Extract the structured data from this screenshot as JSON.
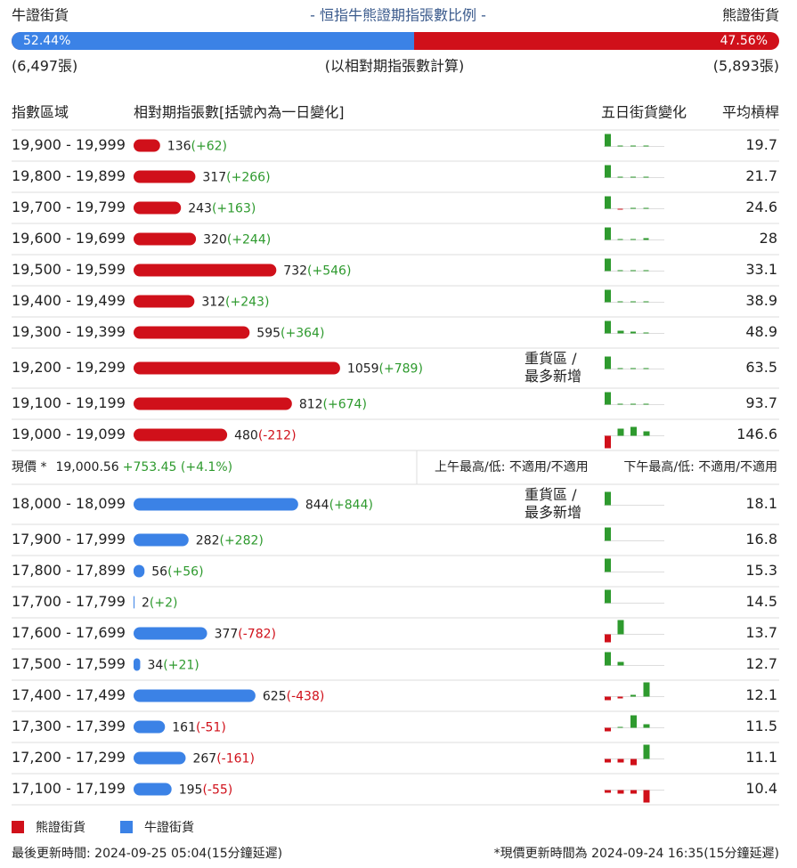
{
  "header": {
    "left_label": "牛證街貨",
    "title": "- 恒指牛熊證期指張數比例 -",
    "right_label": "熊證街貨"
  },
  "ratio": {
    "bull": {
      "value": 52.44,
      "label": "52.44%"
    },
    "bear": {
      "value": 47.56,
      "label": "47.56%"
    },
    "bull_color": "#3b82e6",
    "bear_color": "#d0101a"
  },
  "totals": {
    "bull": "(6,497張)",
    "note": "(以相對期指張數計算)",
    "bear": "(5,893張)"
  },
  "columns": [
    "指數區域",
    "相對期指張數[括號內為一日變化]",
    "五日街貨變化",
    "平均槓桿"
  ],
  "bear_rows": [
    {
      "range": "19,900 - 19,999",
      "count": 136,
      "change": {
        "value": 62,
        "label": "(+62)"
      },
      "five_day": [
        14,
        1,
        1,
        1,
        0
      ],
      "leverage": 19.7
    },
    {
      "range": "19,800 - 19,899",
      "count": 317,
      "change": {
        "value": 266,
        "label": "(+266)"
      },
      "five_day": [
        14,
        1,
        1,
        1,
        0
      ],
      "leverage": 21.7
    },
    {
      "range": "19,700 - 19,799",
      "count": 243,
      "change": {
        "value": 163,
        "label": "(+163)"
      },
      "five_day": [
        14,
        -1,
        1,
        1,
        0
      ],
      "leverage": 24.6
    },
    {
      "range": "19,600 - 19,699",
      "count": 320,
      "change": {
        "value": 244,
        "label": "(+244)"
      },
      "five_day": [
        14,
        1,
        1,
        2,
        0
      ],
      "leverage": 28.0
    },
    {
      "range": "19,500 - 19,599",
      "count": 732,
      "change": {
        "value": 546,
        "label": "(+546)"
      },
      "five_day": [
        14,
        1,
        1,
        1,
        0
      ],
      "leverage": 33.1
    },
    {
      "range": "19,400 - 19,499",
      "count": 312,
      "change": {
        "value": 243,
        "label": "(+243)"
      },
      "five_day": [
        14,
        1,
        1,
        1,
        0
      ],
      "leverage": 38.9
    },
    {
      "range": "19,300 - 19,399",
      "count": 595,
      "change": {
        "value": 364,
        "label": "(+364)"
      },
      "five_day": [
        14,
        3,
        2,
        1,
        0
      ],
      "leverage": 48.9
    },
    {
      "range": "19,200 - 19,299",
      "count": 1059,
      "change": {
        "value": 789,
        "label": "(+789)"
      },
      "note": [
        "重貨區 /",
        "最多新增"
      ],
      "five_day": [
        14,
        1,
        1,
        1,
        0
      ],
      "leverage": 63.5
    },
    {
      "range": "19,100 - 19,199",
      "count": 812,
      "change": {
        "value": 674,
        "label": "(+674)"
      },
      "five_day": [
        14,
        1,
        1,
        1,
        0
      ],
      "leverage": 93.7
    },
    {
      "range": "19,000 - 19,099",
      "count": 480,
      "change": {
        "value": -212,
        "label": "(-212)"
      },
      "five_day": [
        -14,
        8,
        10,
        5,
        0
      ],
      "leverage": 146.6
    }
  ],
  "price_row": {
    "label": "現價 *",
    "price": {
      "value": 19000.56,
      "label": "19,000.56"
    },
    "change": "+753.45 (+4.1%)",
    "am": "上午最高/低: 不適用/不適用",
    "pm": "下午最高/低: 不適用/不適用"
  },
  "bull_rows": [
    {
      "range": "18,000 - 18,099",
      "count": 844,
      "change": {
        "value": 844,
        "label": "(+844)"
      },
      "note": [
        "重貨區 /",
        "最多新增"
      ],
      "five_day": [
        15,
        0,
        0,
        0,
        0
      ],
      "leverage": 18.1
    },
    {
      "range": "17,900 - 17,999",
      "count": 282,
      "change": {
        "value": 282,
        "label": "(+282)"
      },
      "five_day": [
        15,
        0,
        0,
        0,
        0
      ],
      "leverage": 16.8
    },
    {
      "range": "17,800 - 17,899",
      "count": 56,
      "change": {
        "value": 56,
        "label": "(+56)"
      },
      "five_day": [
        15,
        0,
        0,
        0,
        0
      ],
      "leverage": 15.3
    },
    {
      "range": "17,700 - 17,799",
      "count": 2,
      "change": {
        "value": 2,
        "label": "(+2)"
      },
      "five_day": [
        15,
        0,
        0,
        0,
        0
      ],
      "leverage": 14.5
    },
    {
      "range": "17,600 - 17,699",
      "count": 377,
      "change": {
        "value": -782,
        "label": "(-782)"
      },
      "five_day": [
        -9,
        16,
        0,
        0,
        0
      ],
      "leverage": 13.7
    },
    {
      "range": "17,500 - 17,599",
      "count": 34,
      "change": {
        "value": 21,
        "label": "(+21)"
      },
      "five_day": [
        15,
        4,
        0,
        0,
        0
      ],
      "leverage": 12.7
    },
    {
      "range": "17,400 - 17,499",
      "count": 625,
      "change": {
        "value": -438,
        "label": "(-438)"
      },
      "five_day": [
        -4,
        -2,
        2,
        16,
        0
      ],
      "leverage": 12.1
    },
    {
      "range": "17,300 - 17,399",
      "count": 161,
      "change": {
        "value": -51,
        "label": "(-51)"
      },
      "five_day": [
        -4,
        1,
        14,
        4,
        0
      ],
      "leverage": 11.5
    },
    {
      "range": "17,200 - 17,299",
      "count": 267,
      "change": {
        "value": -161,
        "label": "(-161)"
      },
      "five_day": [
        -4,
        -4,
        -7,
        16,
        0
      ],
      "leverage": 11.1
    },
    {
      "range": "17,100 - 17,199",
      "count": 195,
      "change": {
        "value": -55,
        "label": "(-55)"
      },
      "five_day": [
        -3,
        -4,
        -4,
        -14,
        0
      ],
      "leverage": 10.4
    }
  ],
  "legend": {
    "bear": "熊證街貨",
    "bull": "牛證街貨"
  },
  "footer": {
    "updated": "最後更新時間: 2024-09-25 05:04(15分鐘延遲)",
    "price_note": "*現價更新時間為 2024-09-24 16:35(15分鐘延遲)"
  }
}
